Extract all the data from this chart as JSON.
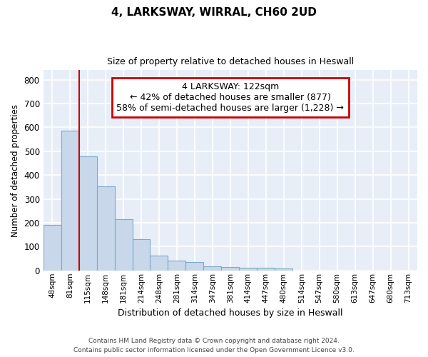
{
  "title1": "4, LARKSWAY, WIRRAL, CH60 2UD",
  "title2": "Size of property relative to detached houses in Heswall",
  "xlabel": "Distribution of detached houses by size in Heswall",
  "ylabel": "Number of detached properties",
  "categories": [
    "48sqm",
    "81sqm",
    "115sqm",
    "148sqm",
    "181sqm",
    "214sqm",
    "248sqm",
    "281sqm",
    "314sqm",
    "347sqm",
    "381sqm",
    "414sqm",
    "447sqm",
    "480sqm",
    "514sqm",
    "547sqm",
    "580sqm",
    "613sqm",
    "647sqm",
    "680sqm",
    "713sqm"
  ],
  "values": [
    190,
    585,
    480,
    352,
    215,
    130,
    63,
    42,
    35,
    17,
    13,
    12,
    10,
    7,
    0,
    0,
    0,
    0,
    0,
    0,
    0
  ],
  "bar_color": "#c8d8ea",
  "bar_edge_color": "#7aaac8",
  "background_color": "#e8eef8",
  "grid_color": "#ffffff",
  "vline_color": "#cc0000",
  "annotation_text": "4 LARKSWAY: 122sqm\n← 42% of detached houses are smaller (877)\n58% of semi-detached houses are larger (1,228) →",
  "annotation_box_color": "#cc0000",
  "ylim": [
    0,
    840
  ],
  "yticks": [
    0,
    100,
    200,
    300,
    400,
    500,
    600,
    700,
    800
  ],
  "footnote1": "Contains HM Land Registry data © Crown copyright and database right 2024.",
  "footnote2": "Contains public sector information licensed under the Open Government Licence v3.0."
}
